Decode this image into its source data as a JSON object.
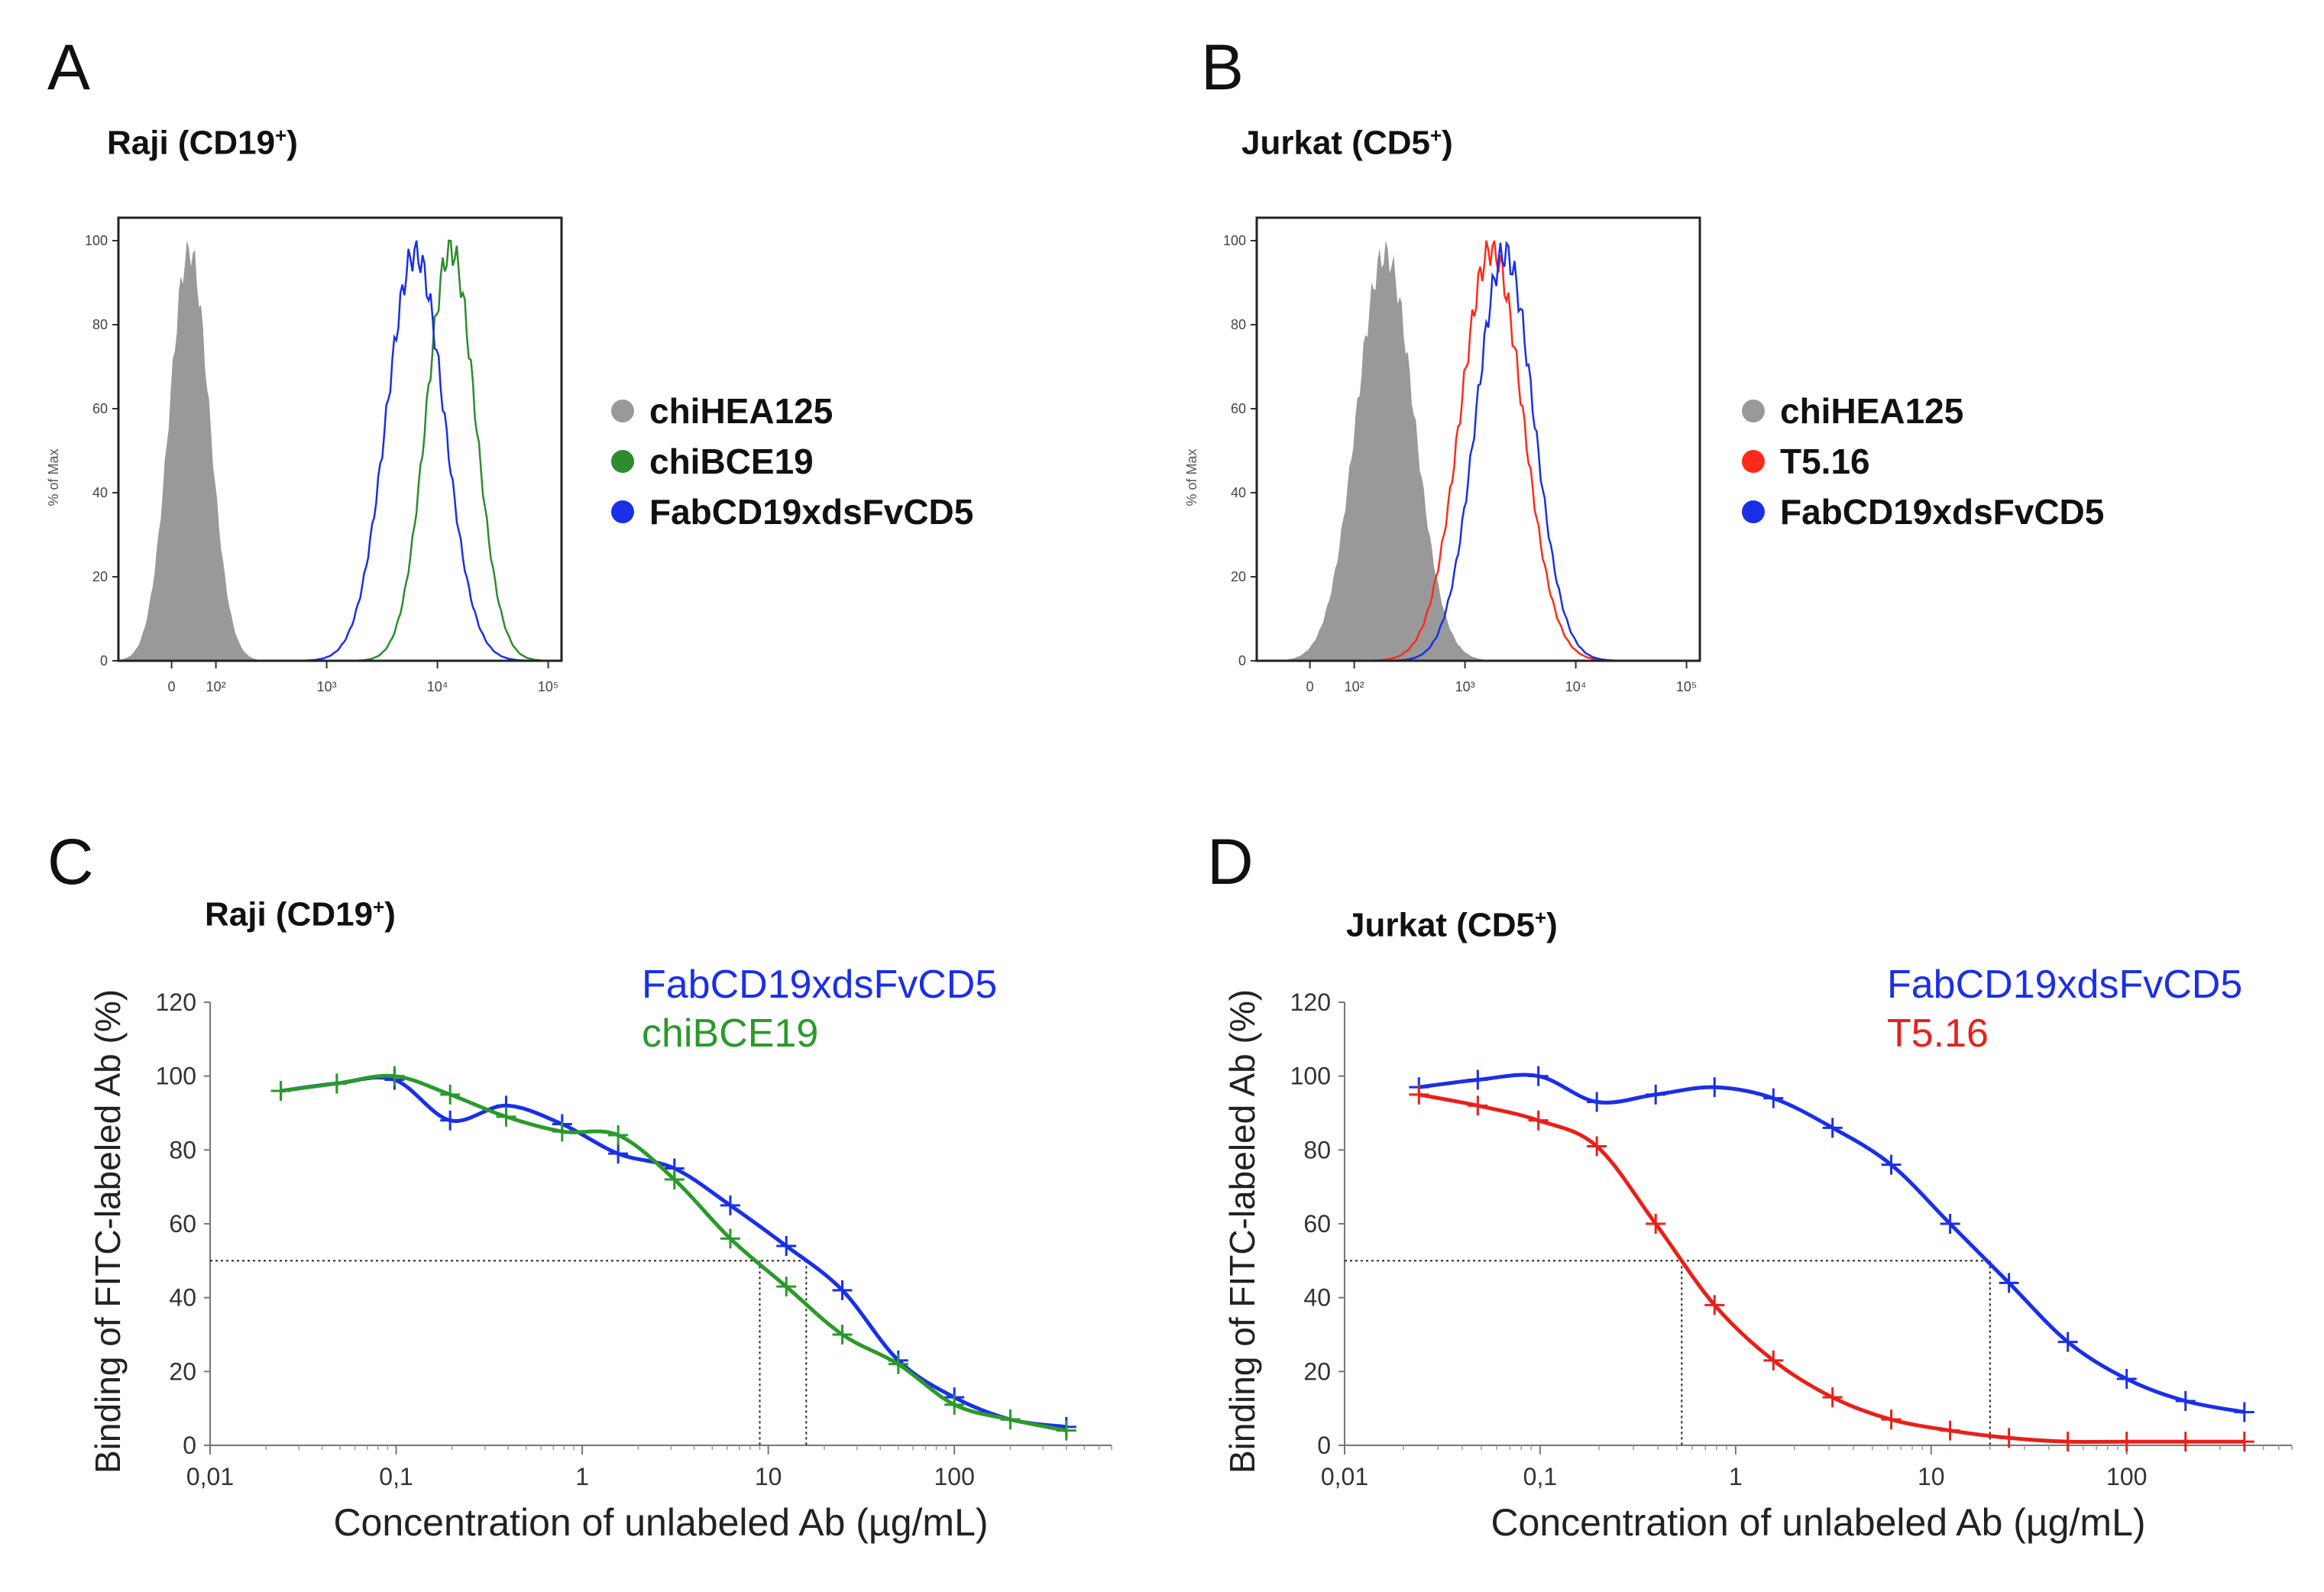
{
  "panels": {
    "A": {
      "letter": "A",
      "title": "Raji (CD19",
      "title_sup": "+",
      "title_close": ")"
    },
    "B": {
      "letter": "B",
      "title": "Jurkat (CD5",
      "title_sup": "+",
      "title_close": ")"
    },
    "C": {
      "letter": "C",
      "title": "Raji (CD19",
      "title_sup": "+",
      "title_close": ")"
    },
    "D": {
      "letter": "D",
      "title": "Jurkat (CD5",
      "title_sup": "+",
      "title_close": ")"
    }
  },
  "legendA": [
    {
      "label": "chiHEA125",
      "color": "#999999"
    },
    {
      "label": "chiBCE19",
      "color": "#2e8b2e"
    },
    {
      "label": "FabCD19xdsFvCD5",
      "color": "#1a2fe8"
    }
  ],
  "legendB": [
    {
      "label": "chiHEA125",
      "color": "#999999"
    },
    {
      "label": "T5.16",
      "color": "#ff2a1a"
    },
    {
      "label": "FabCD19xdsFvCD5",
      "color": "#1a2fe8"
    }
  ],
  "hist_axis": {
    "ylabel": "% of Max",
    "A": {
      "yticks": [
        "0",
        "20",
        "40",
        "60",
        "80",
        "100"
      ],
      "xticks": [
        "0",
        "10²",
        "10³",
        "10⁴",
        "10⁵"
      ]
    },
    "B": {
      "yticks": [
        "0",
        "20",
        "40",
        "60",
        "80",
        "100"
      ],
      "xticks": [
        "0",
        "10²",
        "10³",
        "10⁴",
        "10⁵"
      ]
    }
  },
  "chart_data": [
    {
      "panel": "A",
      "type": "area",
      "title": "Raji (CD19+)",
      "xlabel": "",
      "ylabel": "% of Max",
      "ylim": [
        0,
        100
      ],
      "series": [
        {
          "name": "chiHEA125",
          "color": "#999999",
          "fill": true,
          "center": 0.16,
          "width": 0.045,
          "peak": 98
        },
        {
          "name": "chiBCE19",
          "color": "#2e8b2e",
          "fill": false,
          "center": 0.75,
          "width": 0.055,
          "peak": 98
        },
        {
          "name": "FabCD19xdsFvCD5",
          "color": "#1a2fe8",
          "fill": false,
          "center": 0.67,
          "width": 0.065,
          "peak": 97
        }
      ]
    },
    {
      "panel": "B",
      "type": "area",
      "title": "Jurkat (CD5+)",
      "xlabel": "",
      "ylabel": "% of Max",
      "ylim": [
        0,
        100
      ],
      "series": [
        {
          "name": "chiHEA125",
          "color": "#999999",
          "fill": true,
          "center": 0.29,
          "width": 0.065,
          "peak": 97
        },
        {
          "name": "T5.16",
          "color": "#ff2a1a",
          "fill": false,
          "center": 0.53,
          "width": 0.07,
          "peak": 98
        },
        {
          "name": "FabCD19xdsFvCD5",
          "color": "#1a2fe8",
          "fill": false,
          "center": 0.56,
          "width": 0.065,
          "peak": 97
        }
      ]
    },
    {
      "panel": "C",
      "type": "line",
      "title": "Raji (CD19+)",
      "xlabel": "Concentration of unlabeled Ab (µg/mL)",
      "ylabel": "Binding of FITC-labeled Ab (%)",
      "xscale": "log",
      "xlim": [
        0.01,
        700
      ],
      "ylim": [
        0,
        120
      ],
      "xticks": [
        0.01,
        0.1,
        1,
        10,
        100
      ],
      "xticklabels": [
        "0,01",
        "0,1",
        "1",
        "10",
        "100"
      ],
      "yticks": [
        0,
        20,
        40,
        60,
        80,
        100,
        120
      ],
      "ic50_lines": [
        9,
        16
      ],
      "ic50_level": 50,
      "series": [
        {
          "name": "FabCD19xdsFvCD5",
          "color": "#1a2fe8",
          "x": [
            0.024,
            0.048,
            0.098,
            0.195,
            0.39,
            0.78,
            1.56,
            3.13,
            6.25,
            12.5,
            25,
            50,
            100,
            200,
            400
          ],
          "y": [
            96,
            98,
            99,
            88,
            92,
            87,
            79,
            75,
            65,
            54,
            42,
            23,
            13,
            7,
            5
          ]
        },
        {
          "name": "chiBCE19",
          "color": "#2a9a2a",
          "x": [
            0.024,
            0.048,
            0.098,
            0.195,
            0.39,
            0.78,
            1.56,
            3.13,
            6.25,
            12.5,
            25,
            50,
            100,
            200,
            400
          ],
          "y": [
            96,
            98,
            100,
            95,
            89,
            85,
            84,
            72,
            56,
            43,
            30,
            22,
            11,
            7,
            4
          ]
        }
      ]
    },
    {
      "panel": "D",
      "type": "line",
      "title": "Jurkat (CD5+)",
      "xlabel": "Concentration of unlabeled Ab (µg/mL)",
      "ylabel": "Binding of FITC-labeled Ab (%)",
      "xscale": "log",
      "xlim": [
        0.01,
        700
      ],
      "ylim": [
        0,
        120
      ],
      "xticks": [
        0.01,
        0.1,
        1,
        10,
        100
      ],
      "xticklabels": [
        "0,01",
        "0,1",
        "1",
        "10",
        "100"
      ],
      "yticks": [
        0,
        20,
        40,
        60,
        80,
        100,
        120
      ],
      "ic50_lines": [
        0.53,
        20
      ],
      "ic50_level": 50,
      "series": [
        {
          "name": "FabCD19xdsFvCD5",
          "color": "#1a2fe8",
          "x": [
            0.024,
            0.048,
            0.098,
            0.195,
            0.39,
            0.78,
            1.56,
            3.13,
            6.25,
            12.5,
            25,
            50,
            100,
            200,
            400
          ],
          "y": [
            97,
            99,
            100,
            93,
            95,
            97,
            94,
            86,
            76,
            60,
            44,
            28,
            18,
            12,
            9
          ]
        },
        {
          "name": "T5.16",
          "color": "#e8201a",
          "x": [
            0.024,
            0.048,
            0.098,
            0.195,
            0.39,
            0.78,
            1.56,
            3.13,
            6.25,
            12.5,
            25,
            50,
            100,
            200,
            400
          ],
          "y": [
            95,
            92,
            88,
            81,
            60,
            38,
            23,
            13,
            7,
            4,
            2,
            1,
            1,
            1,
            1
          ]
        }
      ]
    }
  ]
}
